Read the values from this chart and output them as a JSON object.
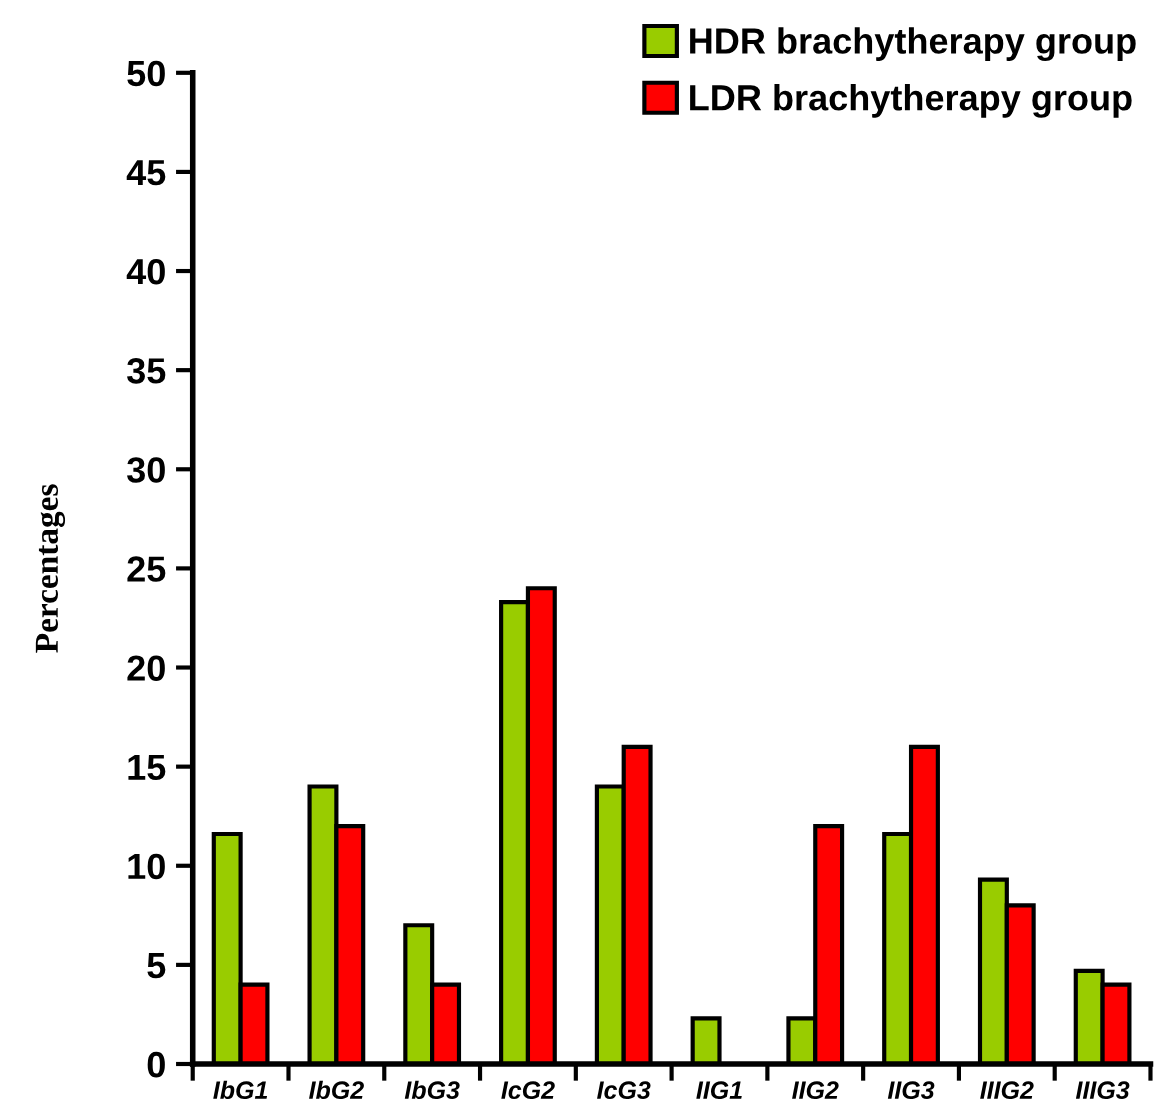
{
  "chart_data": {
    "type": "bar",
    "ylabel": "Percentages",
    "categories": [
      "IbG1",
      "IbG2",
      "IbG3",
      "IcG2",
      "IcG3",
      "IIG1",
      "IIG2",
      "IIG3",
      "IIIG2",
      "IIIG3"
    ],
    "series": [
      {
        "name": "HDR brachytherapy group",
        "color": "#99cc00",
        "values": [
          11.6,
          14,
          7,
          23.3,
          14,
          2.3,
          2.3,
          11.6,
          9.3,
          4.7
        ]
      },
      {
        "name": "LDR brachytherapy group",
        "color": "#ff0000",
        "values": [
          4,
          12,
          4,
          24,
          16,
          0,
          12,
          16,
          8,
          4
        ]
      }
    ],
    "ylim": [
      0,
      50
    ],
    "yticks": [
      0,
      5,
      10,
      15,
      20,
      25,
      30,
      35,
      40,
      45,
      50
    ],
    "grid": false,
    "legend": "top right"
  }
}
